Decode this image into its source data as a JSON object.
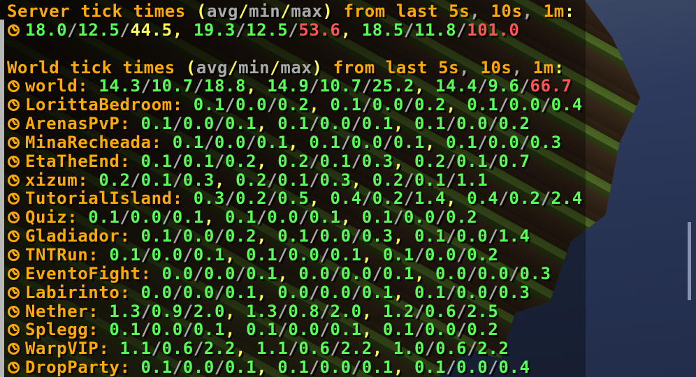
{
  "colors": {
    "gold": "#FFAA00",
    "yellow": "#FFFF55",
    "green": "#55FF55",
    "red": "#FF5555",
    "gray": "#AAAAAA"
  },
  "chat": {
    "default_value_color": "green",
    "separators": {
      "slash": "/",
      "slash_color": "gray",
      "comma": ", ",
      "comma_color": "yellow"
    },
    "server_section": {
      "icon": "clock-icon",
      "header_segments": [
        {
          "t": "Server tick times ",
          "c": "gold"
        },
        {
          "t": "(",
          "c": "yellow"
        },
        {
          "t": "avg",
          "c": "gray"
        },
        {
          "t": "/",
          "c": "yellow"
        },
        {
          "t": "min",
          "c": "gray"
        },
        {
          "t": "/",
          "c": "yellow"
        },
        {
          "t": "max",
          "c": "gray"
        },
        {
          "t": ")",
          "c": "yellow"
        },
        {
          "t": " from last ",
          "c": "gold"
        },
        {
          "t": "5s",
          "c": "gold"
        },
        {
          "t": ", ",
          "c": "gray"
        },
        {
          "t": "10s",
          "c": "gold"
        },
        {
          "t": ", ",
          "c": "gray"
        },
        {
          "t": "1m",
          "c": "gold"
        },
        {
          "t": ":",
          "c": "yellow"
        }
      ],
      "groups": [
        [
          "18.0",
          "12.5",
          {
            "t": "44.5",
            "c": "yellow"
          }
        ],
        [
          "19.3",
          "12.5",
          {
            "t": "53.6",
            "c": "red"
          }
        ],
        [
          "18.5",
          "11.8",
          {
            "t": "101.0",
            "c": "red"
          }
        ]
      ]
    },
    "world_section": {
      "icon": "clock-icon",
      "header_segments": [
        {
          "t": "World tick times ",
          "c": "gold"
        },
        {
          "t": "(",
          "c": "yellow"
        },
        {
          "t": "avg",
          "c": "gray"
        },
        {
          "t": "/",
          "c": "yellow"
        },
        {
          "t": "min",
          "c": "gray"
        },
        {
          "t": "/",
          "c": "yellow"
        },
        {
          "t": "max",
          "c": "gray"
        },
        {
          "t": ")",
          "c": "yellow"
        },
        {
          "t": " from last ",
          "c": "gold"
        },
        {
          "t": "5s",
          "c": "gold"
        },
        {
          "t": ", ",
          "c": "gray"
        },
        {
          "t": "10s",
          "c": "gold"
        },
        {
          "t": ", ",
          "c": "gray"
        },
        {
          "t": "1m",
          "c": "gold"
        },
        {
          "t": ":",
          "c": "yellow"
        }
      ],
      "rows": [
        {
          "name": "world",
          "groups": [
            [
              "14.3",
              "10.7",
              "18.8"
            ],
            [
              "14.9",
              "10.7",
              "25.2"
            ],
            [
              "14.4",
              "9.6",
              {
                "t": "66.7",
                "c": "red"
              }
            ]
          ]
        },
        {
          "name": "LorittaBedroom",
          "groups": [
            [
              "0.1",
              "0.0",
              "0.2"
            ],
            [
              "0.1",
              "0.0",
              "0.2"
            ],
            [
              "0.1",
              "0.0",
              "0.4"
            ]
          ]
        },
        {
          "name": "ArenasPvP",
          "groups": [
            [
              "0.1",
              "0.0",
              "0.1"
            ],
            [
              "0.1",
              "0.0",
              "0.1"
            ],
            [
              "0.1",
              "0.0",
              "0.2"
            ]
          ]
        },
        {
          "name": "MinaRecheada",
          "groups": [
            [
              "0.1",
              "0.0",
              "0.1"
            ],
            [
              "0.1",
              "0.0",
              "0.1"
            ],
            [
              "0.1",
              "0.0",
              "0.3"
            ]
          ]
        },
        {
          "name": "EtaTheEnd",
          "groups": [
            [
              "0.1",
              "0.1",
              "0.2"
            ],
            [
              "0.2",
              "0.1",
              "0.3"
            ],
            [
              "0.2",
              "0.1",
              "0.7"
            ]
          ]
        },
        {
          "name": "xizum",
          "groups": [
            [
              "0.2",
              "0.1",
              "0.3"
            ],
            [
              "0.2",
              "0.1",
              "0.3"
            ],
            [
              "0.2",
              "0.1",
              "1.1"
            ]
          ]
        },
        {
          "name": "TutorialIsland",
          "groups": [
            [
              "0.3",
              "0.2",
              "0.5"
            ],
            [
              "0.4",
              "0.2",
              "1.4"
            ],
            [
              "0.4",
              "0.2",
              "2.4"
            ]
          ]
        },
        {
          "name": "Quiz",
          "groups": [
            [
              "0.1",
              "0.0",
              "0.1"
            ],
            [
              "0.1",
              "0.0",
              "0.1"
            ],
            [
              "0.1",
              "0.0",
              "0.2"
            ]
          ]
        },
        {
          "name": "Gladiador",
          "groups": [
            [
              "0.1",
              "0.0",
              "0.2"
            ],
            [
              "0.1",
              "0.0",
              "0.3"
            ],
            [
              "0.1",
              "0.0",
              "1.4"
            ]
          ]
        },
        {
          "name": "TNTRun",
          "groups": [
            [
              "0.1",
              "0.0",
              "0.1"
            ],
            [
              "0.1",
              "0.0",
              "0.1"
            ],
            [
              "0.1",
              "0.0",
              "0.2"
            ]
          ]
        },
        {
          "name": "EventoFight",
          "groups": [
            [
              "0.0",
              "0.0",
              "0.1"
            ],
            [
              "0.0",
              "0.0",
              "0.1"
            ],
            [
              "0.0",
              "0.0",
              "0.3"
            ]
          ]
        },
        {
          "name": "Labirinto",
          "groups": [
            [
              "0.0",
              "0.0",
              "0.1"
            ],
            [
              "0.0",
              "0.0",
              "0.1"
            ],
            [
              "0.1",
              "0.0",
              "0.3"
            ]
          ]
        },
        {
          "name": "Nether",
          "groups": [
            [
              "1.3",
              "0.9",
              "2.0"
            ],
            [
              "1.3",
              "0.8",
              "2.0"
            ],
            [
              "1.2",
              "0.6",
              "2.5"
            ]
          ]
        },
        {
          "name": "Splegg",
          "groups": [
            [
              "0.1",
              "0.0",
              "0.1"
            ],
            [
              "0.1",
              "0.0",
              "0.1"
            ],
            [
              "0.1",
              "0.0",
              "0.2"
            ]
          ]
        },
        {
          "name": "WarpVIP",
          "groups": [
            [
              "1.1",
              "0.6",
              "2.2"
            ],
            [
              "1.1",
              "0.6",
              "2.2"
            ],
            [
              "1.0",
              "0.6",
              "2.2"
            ]
          ]
        },
        {
          "name": "DropParty",
          "groups": [
            [
              "0.1",
              "0.0",
              "0.1"
            ],
            [
              "0.1",
              "0.0",
              "0.1"
            ],
            [
              "0.1",
              "0.0",
              "0.4"
            ]
          ]
        }
      ]
    }
  }
}
